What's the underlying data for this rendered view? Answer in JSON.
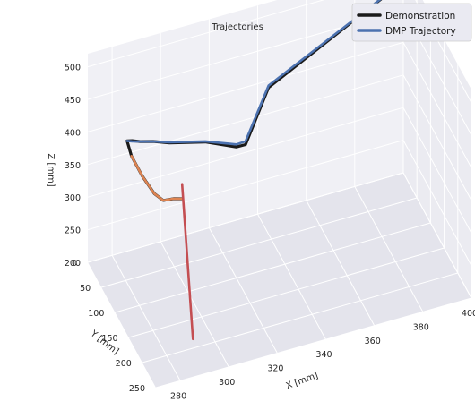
{
  "chart_data": {
    "type": "line",
    "projection": "3d",
    "title": "Trajectories",
    "xlabel": "X [mm]",
    "ylabel": "Y [mm]",
    "zlabel": "Z [mm]",
    "xlim": [
      270,
      400
    ],
    "ylim": [
      0,
      250
    ],
    "zlim": [
      200,
      520
    ],
    "x_ticks": [
      400,
      380,
      360,
      340,
      320,
      300,
      280
    ],
    "y_ticks": [
      0,
      50,
      100,
      150,
      200,
      250
    ],
    "z_ticks": [
      200,
      250,
      300,
      350,
      400,
      450,
      500
    ],
    "grid": true,
    "legend_position": "top-right",
    "colors": {
      "pane": "#eaeaf2",
      "grid": "#ffffff",
      "demonstration": "#1a1a1a",
      "dmp": "#4c72b0",
      "segment_orange": "#dd8452",
      "segment_red": "#c44e52",
      "start_marker": "#c44e52"
    },
    "series": [
      {
        "name": "Demonstration",
        "role": "demonstration",
        "x": [
          398,
          340,
          326,
          322,
          310,
          296,
          290,
          285,
          282,
          280,
          279,
          279,
          280,
          282,
          286,
          289
        ],
        "y": [
          5,
          40,
          80,
          82,
          75,
          68,
          62,
          58,
          56,
          55,
          80,
          120,
          155,
          170,
          172,
          175
        ],
        "z": [
          495,
          425,
          383,
          385,
          400,
          408,
          412,
          414,
          417,
          418,
          415,
          415,
          414,
          413,
          413,
          412
        ]
      },
      {
        "name": "DMP Trajectory",
        "role": "dmp",
        "x": [
          398,
          340,
          326,
          322,
          310,
          296,
          290,
          285,
          282,
          280
        ],
        "y": [
          5,
          40,
          80,
          82,
          75,
          68,
          62,
          58,
          56,
          55
        ],
        "z": [
          495,
          428,
          388,
          389,
          401,
          409,
          412,
          414,
          416,
          418
        ]
      },
      {
        "role": "segment_orange",
        "x": [
          279,
          279,
          280,
          282,
          286,
          289
        ],
        "y": [
          80,
          120,
          155,
          170,
          172,
          175
        ],
        "z": [
          415,
          415,
          414,
          413,
          413,
          412
        ]
      },
      {
        "role": "segment_red",
        "x": [
          292,
          292
        ],
        "y": [
          150,
          190
        ],
        "z": [
          412,
          205
        ]
      }
    ]
  }
}
